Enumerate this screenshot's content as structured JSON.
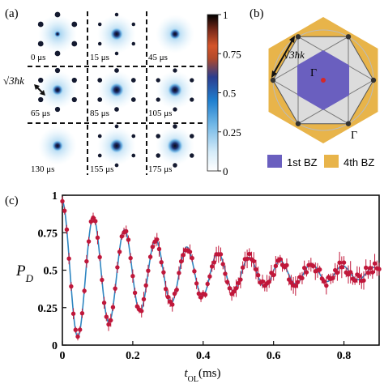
{
  "panels": {
    "a": {
      "label": "(a)",
      "frames": [
        {
          "time": "0 μs"
        },
        {
          "time": "15 μs"
        },
        {
          "time": "45 μs"
        },
        {
          "time": "65 μs"
        },
        {
          "time": "85 μs"
        },
        {
          "time": "105 μs"
        },
        {
          "time": "130 μs"
        },
        {
          "time": "155 μs"
        },
        {
          "time": "175 μs"
        }
      ],
      "momentum_label": "√3ħk",
      "colorbar": {
        "ticks": [
          "1",
          "0.75",
          "0.5",
          "0.25",
          "0"
        ],
        "colors": [
          "#ffffff",
          "#cfe8f7",
          "#6fb6e6",
          "#1f7fcf",
          "#2b3d8f",
          "#b24a2a",
          "#d4552a",
          "#7a2a1a",
          "#000000"
        ]
      }
    },
    "b": {
      "label": "(b)",
      "gamma_center": "Γ",
      "gamma_vertex": "Γ",
      "momentum_label": "√3ħk",
      "legend": [
        {
          "label": "1st BZ",
          "color": "#6a5fbf"
        },
        {
          "label": "4th BZ",
          "color": "#e8b44a"
        }
      ]
    },
    "c": {
      "label": "(c)",
      "ylabel": "P_D",
      "xlabel": "t_OL(ms)"
    }
  },
  "chart_data": {
    "type": "scatter",
    "title": "",
    "xlabel": "t_OL(ms)",
    "ylabel": "P_D",
    "xlim": [
      0,
      0.9
    ],
    "ylim": [
      0,
      1
    ],
    "xticks": [
      0,
      0.2,
      0.4,
      0.6,
      0.8
    ],
    "xtick_labels": [
      "0",
      "0.2",
      "0.4",
      "0.6",
      "0.8"
    ],
    "yticks": [
      0,
      0.25,
      0.5,
      0.75,
      1
    ],
    "ytick_labels": [
      "0",
      "0.25",
      "0.5",
      "0.75",
      "1"
    ],
    "grid": false,
    "series": [
      {
        "kind": "points-with-error",
        "color": "#c0173a",
        "model": {
          "offset": 0.48,
          "amplitude": 0.48,
          "period_ms": 0.0885,
          "decay_ms": 0.35,
          "start": 0,
          "end": 0.9,
          "step": 0.00625
        },
        "error_range": [
          0.02,
          0.06
        ]
      },
      {
        "kind": "fit-line",
        "color": "#2e86c1",
        "model": {
          "offset": 0.48,
          "amplitude": 0.48,
          "period_ms": 0.0885,
          "decay_ms": 0.35,
          "start": 0,
          "end": 0.9
        }
      }
    ]
  }
}
